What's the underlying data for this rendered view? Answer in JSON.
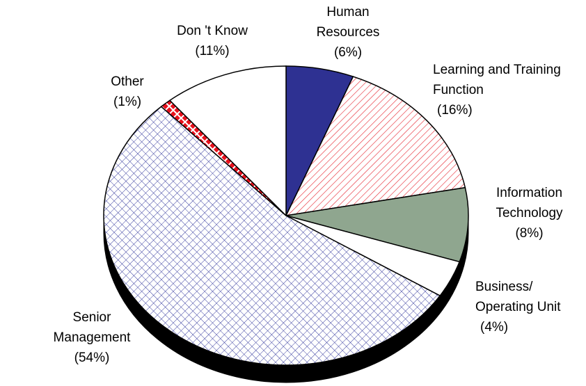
{
  "chart_data": {
    "type": "pie",
    "categories": [
      "Human Resources",
      "Learning and Training Function",
      "Information Technology",
      "Business/ Operating Unit",
      "Senior Management",
      "Other",
      "Don 't Know"
    ],
    "values": [
      6,
      16,
      8,
      4,
      54,
      1,
      11
    ],
    "value_labels": [
      "(6%)",
      "(16%)",
      "(8%)",
      "(4%)",
      "(54%)",
      "(1%)",
      "(11%)"
    ],
    "colors": [
      "#2e3192",
      "#e8323c",
      "#8fa68f",
      "#ffffff",
      "#3a3fa0",
      "#e8101c",
      "#ffffff"
    ],
    "patterns": [
      "solid",
      "hatch",
      "solid",
      "solid",
      "crosshatch",
      "diamond",
      "solid"
    ]
  }
}
